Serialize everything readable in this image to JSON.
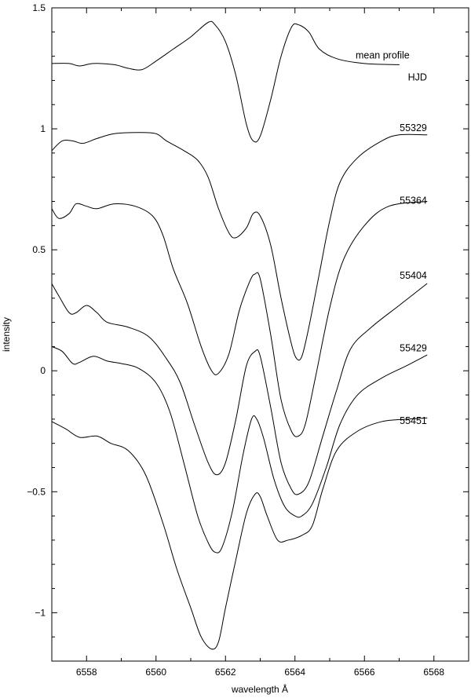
{
  "chart_data": {
    "type": "line",
    "xlabel": "wavelength Å",
    "ylabel": "intensity",
    "xlim": [
      6557,
      6569
    ],
    "ylim": [
      -1.2,
      1.5
    ],
    "xticks": [
      6558,
      6560,
      6562,
      6564,
      6566,
      6568
    ],
    "yticks": [
      -1,
      -0.5,
      0,
      0.5,
      1,
      1.5
    ],
    "ytick_labels": [
      "−1",
      "−0.5",
      "0",
      "0.5",
      "1",
      "1.5"
    ],
    "annotations": [
      {
        "text": "HJD",
        "x": 6567.8,
        "y": 1.2
      }
    ],
    "series": [
      {
        "name": "mean profile",
        "label_at": [
          6567.3,
          1.29
        ],
        "points": [
          [
            6557,
            1.27
          ],
          [
            6557.5,
            1.27
          ],
          [
            6557.8,
            1.26
          ],
          [
            6558.2,
            1.27
          ],
          [
            6558.8,
            1.265
          ],
          [
            6559.2,
            1.25
          ],
          [
            6559.6,
            1.245
          ],
          [
            6560.0,
            1.28
          ],
          [
            6560.5,
            1.33
          ],
          [
            6561.0,
            1.38
          ],
          [
            6561.5,
            1.44
          ],
          [
            6561.7,
            1.43
          ],
          [
            6562.0,
            1.36
          ],
          [
            6562.3,
            1.22
          ],
          [
            6562.6,
            1.02
          ],
          [
            6562.8,
            0.95
          ],
          [
            6563.0,
            0.97
          ],
          [
            6563.3,
            1.12
          ],
          [
            6563.6,
            1.3
          ],
          [
            6563.9,
            1.42
          ],
          [
            6564.1,
            1.43
          ],
          [
            6564.4,
            1.4
          ],
          [
            6564.7,
            1.33
          ],
          [
            6565.2,
            1.29
          ],
          [
            6566.0,
            1.27
          ],
          [
            6567.0,
            1.265
          ]
        ]
      },
      {
        "name": "55329",
        "label_at": [
          6567.8,
          0.99
        ],
        "points": [
          [
            6557,
            0.91
          ],
          [
            6557.3,
            0.95
          ],
          [
            6557.6,
            0.95
          ],
          [
            6557.9,
            0.94
          ],
          [
            6558.3,
            0.96
          ],
          [
            6558.8,
            0.98
          ],
          [
            6559.5,
            0.985
          ],
          [
            6560.0,
            0.98
          ],
          [
            6560.3,
            0.95
          ],
          [
            6560.8,
            0.91
          ],
          [
            6561.2,
            0.87
          ],
          [
            6561.5,
            0.8
          ],
          [
            6561.8,
            0.67
          ],
          [
            6562.1,
            0.57
          ],
          [
            6562.3,
            0.55
          ],
          [
            6562.6,
            0.59
          ],
          [
            6562.8,
            0.65
          ],
          [
            6563.0,
            0.64
          ],
          [
            6563.3,
            0.52
          ],
          [
            6563.6,
            0.3
          ],
          [
            6563.9,
            0.11
          ],
          [
            6564.05,
            0.05
          ],
          [
            6564.2,
            0.06
          ],
          [
            6564.4,
            0.18
          ],
          [
            6564.7,
            0.4
          ],
          [
            6565.0,
            0.62
          ],
          [
            6565.3,
            0.78
          ],
          [
            6565.8,
            0.88
          ],
          [
            6566.5,
            0.95
          ],
          [
            6567.0,
            0.975
          ],
          [
            6567.8,
            0.975
          ]
        ]
      },
      {
        "name": "55364",
        "label_at": [
          6567.8,
          0.69
        ],
        "points": [
          [
            6557,
            0.67
          ],
          [
            6557.2,
            0.63
          ],
          [
            6557.5,
            0.65
          ],
          [
            6557.7,
            0.69
          ],
          [
            6558.0,
            0.68
          ],
          [
            6558.3,
            0.67
          ],
          [
            6558.8,
            0.69
          ],
          [
            6559.4,
            0.68
          ],
          [
            6559.9,
            0.64
          ],
          [
            6560.2,
            0.56
          ],
          [
            6560.5,
            0.42
          ],
          [
            6560.9,
            0.28
          ],
          [
            6561.3,
            0.1
          ],
          [
            6561.6,
            0.0
          ],
          [
            6561.8,
            -0.01
          ],
          [
            6562.1,
            0.07
          ],
          [
            6562.4,
            0.25
          ],
          [
            6562.7,
            0.37
          ],
          [
            6562.85,
            0.4
          ],
          [
            6563.0,
            0.38
          ],
          [
            6563.3,
            0.15
          ],
          [
            6563.6,
            -0.12
          ],
          [
            6563.9,
            -0.25
          ],
          [
            6564.1,
            -0.27
          ],
          [
            6564.3,
            -0.22
          ],
          [
            6564.6,
            -0.02
          ],
          [
            6565.0,
            0.26
          ],
          [
            6565.4,
            0.46
          ],
          [
            6566.0,
            0.6
          ],
          [
            6566.7,
            0.68
          ],
          [
            6567.8,
            0.7
          ]
        ]
      },
      {
        "name": "55404",
        "label_at": [
          6567.8,
          0.38
        ],
        "points": [
          [
            6557,
            0.36
          ],
          [
            6557.2,
            0.31
          ],
          [
            6557.5,
            0.24
          ],
          [
            6557.7,
            0.24
          ],
          [
            6558.0,
            0.27
          ],
          [
            6558.3,
            0.24
          ],
          [
            6558.6,
            0.2
          ],
          [
            6559.2,
            0.18
          ],
          [
            6559.8,
            0.14
          ],
          [
            6560.3,
            0.05
          ],
          [
            6560.7,
            -0.05
          ],
          [
            6561.1,
            -0.22
          ],
          [
            6561.5,
            -0.38
          ],
          [
            6561.75,
            -0.43
          ],
          [
            6562.0,
            -0.38
          ],
          [
            6562.3,
            -0.2
          ],
          [
            6562.6,
            0.02
          ],
          [
            6562.85,
            0.08
          ],
          [
            6563.0,
            0.06
          ],
          [
            6563.3,
            -0.15
          ],
          [
            6563.6,
            -0.38
          ],
          [
            6563.9,
            -0.49
          ],
          [
            6564.1,
            -0.51
          ],
          [
            6564.4,
            -0.46
          ],
          [
            6564.8,
            -0.27
          ],
          [
            6565.2,
            -0.08
          ],
          [
            6565.6,
            0.09
          ],
          [
            6566.2,
            0.18
          ],
          [
            6567.0,
            0.27
          ],
          [
            6567.8,
            0.36
          ]
        ]
      },
      {
        "name": "55429",
        "label_at": [
          6567.8,
          0.08
        ],
        "points": [
          [
            6557,
            0.1
          ],
          [
            6557.3,
            0.08
          ],
          [
            6557.6,
            0.03
          ],
          [
            6557.8,
            0.035
          ],
          [
            6558.2,
            0.06
          ],
          [
            6558.6,
            0.04
          ],
          [
            6559.0,
            0.03
          ],
          [
            6559.5,
            0.01
          ],
          [
            6560.0,
            -0.05
          ],
          [
            6560.4,
            -0.17
          ],
          [
            6560.8,
            -0.38
          ],
          [
            6561.2,
            -0.6
          ],
          [
            6561.5,
            -0.71
          ],
          [
            6561.7,
            -0.75
          ],
          [
            6561.9,
            -0.73
          ],
          [
            6562.2,
            -0.58
          ],
          [
            6562.5,
            -0.35
          ],
          [
            6562.75,
            -0.2
          ],
          [
            6562.9,
            -0.2
          ],
          [
            6563.1,
            -0.28
          ],
          [
            6563.4,
            -0.45
          ],
          [
            6563.7,
            -0.56
          ],
          [
            6564.0,
            -0.6
          ],
          [
            6564.2,
            -0.6
          ],
          [
            6564.5,
            -0.55
          ],
          [
            6564.9,
            -0.4
          ],
          [
            6565.3,
            -0.22
          ],
          [
            6565.8,
            -0.1
          ],
          [
            6566.5,
            -0.03
          ],
          [
            6567.2,
            0.02
          ],
          [
            6567.8,
            0.065
          ]
        ]
      },
      {
        "name": "55451",
        "label_at": [
          6567.8,
          -0.22
        ],
        "points": [
          [
            6557,
            -0.21
          ],
          [
            6557.4,
            -0.24
          ],
          [
            6557.8,
            -0.275
          ],
          [
            6558.3,
            -0.27
          ],
          [
            6558.7,
            -0.3
          ],
          [
            6559.2,
            -0.33
          ],
          [
            6559.7,
            -0.43
          ],
          [
            6560.2,
            -0.63
          ],
          [
            6560.6,
            -0.82
          ],
          [
            6561.0,
            -0.98
          ],
          [
            6561.3,
            -1.1
          ],
          [
            6561.6,
            -1.15
          ],
          [
            6561.8,
            -1.12
          ],
          [
            6562.0,
            -0.98
          ],
          [
            6562.3,
            -0.78
          ],
          [
            6562.6,
            -0.59
          ],
          [
            6562.85,
            -0.51
          ],
          [
            6563.0,
            -0.52
          ],
          [
            6563.2,
            -0.6
          ],
          [
            6563.5,
            -0.7
          ],
          [
            6563.8,
            -0.7
          ],
          [
            6564.2,
            -0.68
          ],
          [
            6564.5,
            -0.64
          ],
          [
            6564.8,
            -0.49
          ],
          [
            6565.2,
            -0.33
          ],
          [
            6565.8,
            -0.25
          ],
          [
            6566.5,
            -0.21
          ],
          [
            6567.2,
            -0.2
          ],
          [
            6567.8,
            -0.195
          ]
        ]
      }
    ]
  }
}
